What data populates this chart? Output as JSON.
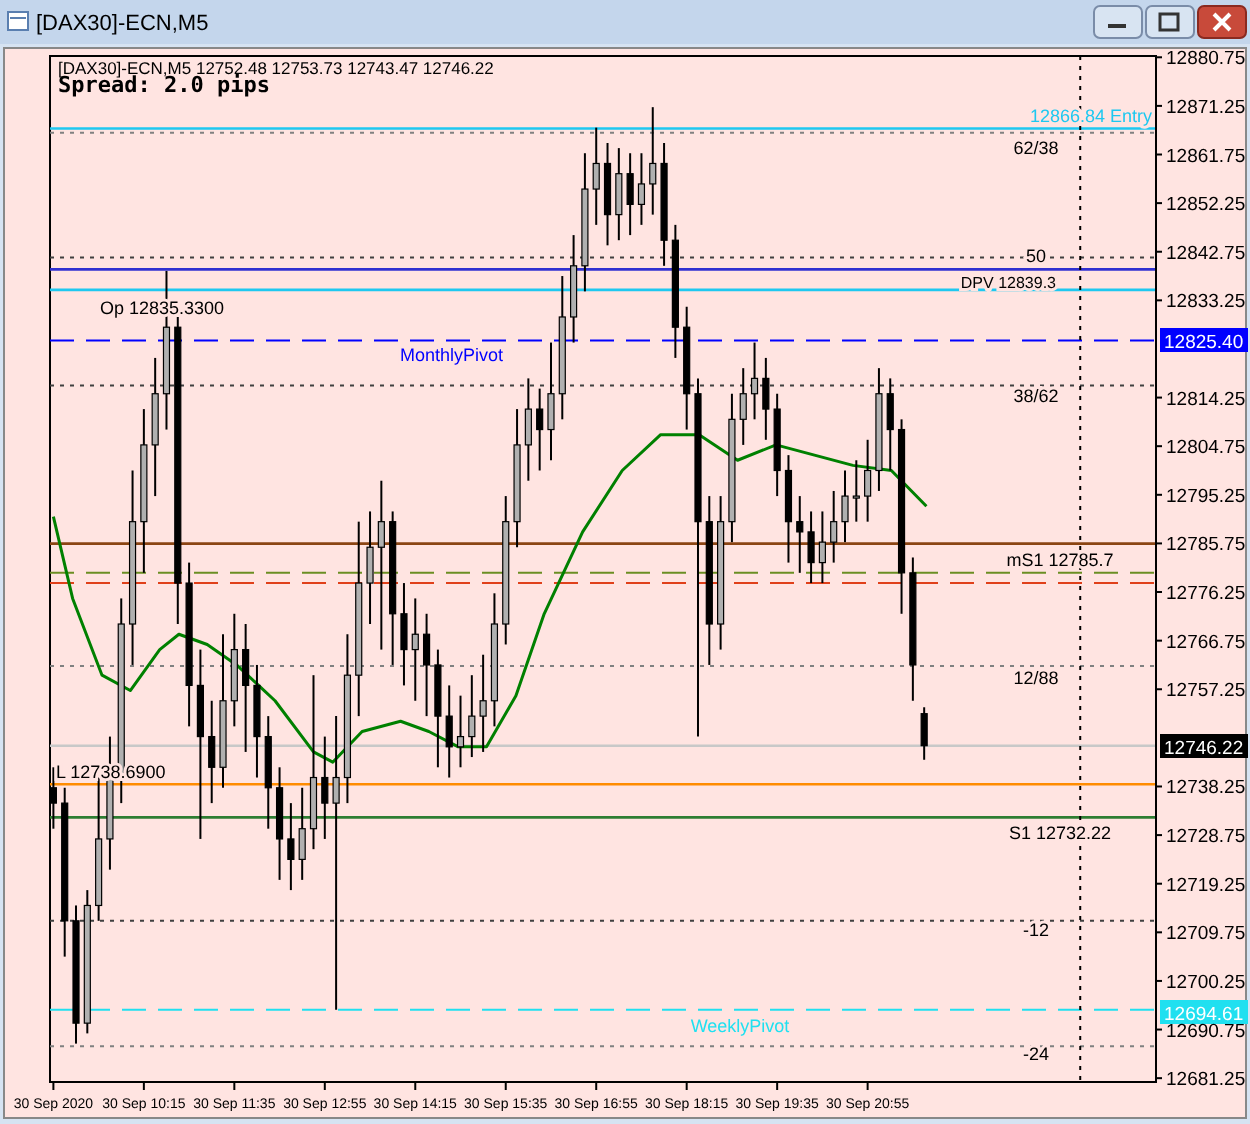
{
  "chart_data": {
    "type": "candlestick",
    "title": "[DAX30]-ECN,M5",
    "subtitle": "[DAX30]-ECN,M5 12752.48 12753.73 12743.47 12746.22",
    "annotations": [
      "Spread: 2.0 pips",
      "62/38",
      "50",
      "38/62",
      "12/88",
      "-12",
      "-24",
      "12825.40",
      "12746.22",
      "12694.61"
    ],
    "x": [
      "2020-09-30T08:55",
      "2020-09-30T09:05",
      "2020-09-30T09:15",
      "2020-09-30T09:25",
      "2020-09-30T09:35",
      "2020-09-30T09:45",
      "2020-09-30T09:55",
      "2020-09-30T10:05",
      "2020-09-30T10:15",
      "2020-09-30T10:25",
      "2020-09-30T10:35",
      "2020-09-30T10:45",
      "2020-09-30T10:55",
      "2020-09-30T11:05",
      "2020-09-30T11:15",
      "2020-09-30T11:25",
      "2020-09-30T11:35",
      "2020-09-30T11:45",
      "2020-09-30T11:55",
      "2020-09-30T12:05",
      "2020-09-30T12:15",
      "2020-09-30T12:25",
      "2020-09-30T12:35",
      "2020-09-30T12:45",
      "2020-09-30T12:55",
      "2020-09-30T13:05",
      "2020-09-30T13:15",
      "2020-09-30T13:25",
      "2020-09-30T13:35",
      "2020-09-30T13:45",
      "2020-09-30T13:55",
      "2020-09-30T14:05",
      "2020-09-30T14:15",
      "2020-09-30T14:25",
      "2020-09-30T14:35",
      "2020-09-30T14:45",
      "2020-09-30T14:55",
      "2020-09-30T15:05",
      "2020-09-30T15:15",
      "2020-09-30T15:25",
      "2020-09-30T15:35",
      "2020-09-30T15:45",
      "2020-09-30T15:55",
      "2020-09-30T16:05",
      "2020-09-30T16:15",
      "2020-09-30T16:25",
      "2020-09-30T16:35",
      "2020-09-30T16:45",
      "2020-09-30T16:55",
      "2020-09-30T17:05",
      "2020-09-30T17:15",
      "2020-09-30T17:25",
      "2020-09-30T17:35",
      "2020-09-30T17:45",
      "2020-09-30T17:55",
      "2020-09-30T18:05",
      "2020-09-30T18:15",
      "2020-09-30T18:25",
      "2020-09-30T18:35",
      "2020-09-30T18:45",
      "2020-09-30T18:55",
      "2020-09-30T19:05",
      "2020-09-30T19:15",
      "2020-09-30T19:25",
      "2020-09-30T19:35",
      "2020-09-30T19:45",
      "2020-09-30T19:55",
      "2020-09-30T20:05",
      "2020-09-30T20:15",
      "2020-09-30T20:25",
      "2020-09-30T20:35",
      "2020-09-30T20:45",
      "2020-09-30T20:55",
      "2020-09-30T21:05",
      "2020-09-30T21:15",
      "2020-09-30T21:25",
      "2020-09-30T21:35",
      "2020-09-30T21:45"
    ],
    "ohlc": [
      [
        12738,
        12742,
        12730,
        12735
      ],
      [
        12735,
        12738,
        12705,
        12712
      ],
      [
        12712,
        12715,
        12688,
        12692
      ],
      [
        12692,
        12718,
        12690,
        12715
      ],
      [
        12715,
        12740,
        12712,
        12728
      ],
      [
        12728,
        12748,
        12722,
        12740
      ],
      [
        12740,
        12775,
        12735,
        12770
      ],
      [
        12770,
        12800,
        12762,
        12790
      ],
      [
        12790,
        12812,
        12780,
        12805
      ],
      [
        12805,
        12822,
        12795,
        12815
      ],
      [
        12815,
        12839,
        12808,
        12828
      ],
      [
        12828,
        12830,
        12770,
        12778
      ],
      [
        12778,
        12782,
        12750,
        12758
      ],
      [
        12758,
        12765,
        12728,
        12748
      ],
      [
        12748,
        12755,
        12735,
        12742
      ],
      [
        12742,
        12768,
        12738,
        12755
      ],
      [
        12755,
        12772,
        12750,
        12765
      ],
      [
        12765,
        12770,
        12745,
        12758
      ],
      [
        12758,
        12762,
        12740,
        12748
      ],
      [
        12748,
        12752,
        12730,
        12738
      ],
      [
        12738,
        12742,
        12720,
        12728
      ],
      [
        12728,
        12735,
        12718,
        12724
      ],
      [
        12724,
        12738,
        12720,
        12730
      ],
      [
        12730,
        12760,
        12726,
        12740
      ],
      [
        12740,
        12748,
        12728,
        12735
      ],
      [
        12735,
        12752,
        12694.6,
        12740
      ],
      [
        12740,
        12768,
        12735,
        12760
      ],
      [
        12760,
        12790,
        12752,
        12778
      ],
      [
        12778,
        12792,
        12770,
        12785
      ],
      [
        12785,
        12798,
        12765,
        12790
      ],
      [
        12790,
        12792,
        12762,
        12772
      ],
      [
        12772,
        12778,
        12758,
        12765
      ],
      [
        12765,
        12775,
        12755,
        12768
      ],
      [
        12768,
        12772,
        12752,
        12762
      ],
      [
        12762,
        12765,
        12742,
        12752
      ],
      [
        12752,
        12758,
        12740,
        12746
      ],
      [
        12746,
        12756,
        12742,
        12748
      ],
      [
        12748,
        12760,
        12744,
        12752
      ],
      [
        12752,
        12764,
        12745,
        12755
      ],
      [
        12755,
        12776,
        12750,
        12770
      ],
      [
        12770,
        12795,
        12766,
        12790
      ],
      [
        12790,
        12812,
        12785,
        12805
      ],
      [
        12805,
        12818,
        12798,
        12812
      ],
      [
        12812,
        12816,
        12800,
        12808
      ],
      [
        12808,
        12825,
        12802,
        12815
      ],
      [
        12815,
        12838,
        12810,
        12830
      ],
      [
        12830,
        12846,
        12825,
        12840
      ],
      [
        12840,
        12862,
        12835,
        12855
      ],
      [
        12855,
        12867,
        12848,
        12860
      ],
      [
        12860,
        12864,
        12844,
        12850
      ],
      [
        12850,
        12863,
        12845,
        12858
      ],
      [
        12858,
        12862,
        12846,
        12852
      ],
      [
        12852,
        12862,
        12848,
        12856
      ],
      [
        12856,
        12871,
        12850,
        12860
      ],
      [
        12860,
        12864,
        12840,
        12845
      ],
      [
        12845,
        12848,
        12822,
        12828
      ],
      [
        12828,
        12832,
        12808,
        12815
      ],
      [
        12815,
        12818,
        12748,
        12790
      ],
      [
        12790,
        12795,
        12762,
        12770
      ],
      [
        12770,
        12795,
        12765,
        12790
      ],
      [
        12790,
        12815,
        12786,
        12810
      ],
      [
        12810,
        12820,
        12805,
        12815
      ],
      [
        12815,
        12825,
        12810,
        12818
      ],
      [
        12818,
        12822,
        12806,
        12812
      ],
      [
        12812,
        12815,
        12795,
        12800
      ],
      [
        12800,
        12803,
        12782,
        12790
      ],
      [
        12790,
        12795,
        12780,
        12788
      ],
      [
        12788,
        12792,
        12778,
        12782
      ],
      [
        12782,
        12792,
        12778,
        12786
      ],
      [
        12786,
        12796,
        12782,
        12790
      ],
      [
        12790,
        12800,
        12786,
        12795
      ],
      [
        12795,
        12802,
        12790,
        12795
      ],
      [
        12795,
        12806,
        12790,
        12800
      ],
      [
        12800,
        12820,
        12796,
        12815
      ],
      [
        12815,
        12818,
        12800,
        12808
      ],
      [
        12808,
        12810,
        12772,
        12780
      ],
      [
        12780,
        12783,
        12755,
        12762
      ],
      [
        12752.48,
        12753.73,
        12743.47,
        12746.22
      ]
    ],
    "series": [
      {
        "type": "line",
        "color": "#008000",
        "x": [
          "2020-09-30T08:55",
          "2020-09-30T09:12",
          "2020-09-30T09:38",
          "2020-09-30T10:03",
          "2020-09-30T10:29",
          "2020-09-30T10:46",
          "2020-09-30T11:11",
          "2020-09-30T11:37",
          "2020-09-30T12:11",
          "2020-09-30T12:45",
          "2020-09-30T13:02",
          "2020-09-30T13:28",
          "2020-09-30T14:02",
          "2020-09-30T14:27",
          "2020-09-30T14:53",
          "2020-09-30T15:18",
          "2020-09-30T15:44",
          "2020-09-30T16:09",
          "2020-09-30T16:43",
          "2020-09-30T17:18",
          "2020-09-30T17:52",
          "2020-09-30T18:26",
          "2020-09-30T19:00",
          "2020-09-30T19:34",
          "2020-09-30T20:08",
          "2020-09-30T20:42",
          "2020-09-30T21:16",
          "2020-09-30T21:47"
        ],
        "values": [
          12791,
          12775,
          12760,
          12757,
          12765,
          12768,
          12766,
          12762,
          12755,
          12745,
          12743,
          12749,
          12751,
          12749,
          12746,
          12746,
          12756,
          12772,
          12788,
          12800,
          12807,
          12807,
          12802,
          12805,
          12803,
          12801,
          12800,
          12793
        ]
      }
    ],
    "xlim": [
      "2020-09-30T08:52",
      "2020-10-01T01:10"
    ],
    "xticks": [
      {
        "value": "2020-09-30T08:55",
        "label": "30 Sep 2020"
      },
      {
        "value": "2020-09-30T10:15",
        "label": "30 Sep 10:15"
      },
      {
        "value": "2020-09-30T11:35",
        "label": "30 Sep 11:35"
      },
      {
        "value": "2020-09-30T12:55",
        "label": "30 Sep 12:55"
      },
      {
        "value": "2020-09-30T14:15",
        "label": "30 Sep 14:15"
      },
      {
        "value": "2020-09-30T15:35",
        "label": "30 Sep 15:35"
      },
      {
        "value": "2020-09-30T16:55",
        "label": "30 Sep 16:55"
      },
      {
        "value": "2020-09-30T18:15",
        "label": "30 Sep 18:15"
      },
      {
        "value": "2020-09-30T19:35",
        "label": "30 Sep 19:35"
      },
      {
        "value": "2020-09-30T20:55",
        "label": "30 Sep 20:55"
      }
    ],
    "ylim": [
      12680.5,
      12881
    ],
    "yticks": [
      12880.75,
      12871.25,
      12861.75,
      12852.25,
      12842.75,
      12833.25,
      12814.25,
      12804.75,
      12795.25,
      12785.75,
      12776.25,
      12766.75,
      12757.25,
      12738.25,
      12728.75,
      12719.25,
      12709.75,
      12700.25,
      12690.75,
      12681.25
    ],
    "ref_lines": [
      {
        "axis": "y",
        "value": 12866.84,
        "label": "12866.84 Entry",
        "color": "#1ec8f0",
        "line_style": "solid"
      },
      {
        "axis": "y",
        "value": 12866,
        "color": "#808080",
        "line_style": "dotted"
      },
      {
        "axis": "y",
        "value": 12841.6,
        "color": "#404040",
        "line_style": "dotted"
      },
      {
        "axis": "y",
        "value": 12839.3,
        "label": "DPV 12839.3",
        "color": "#3030d0",
        "line_style": "solid"
      },
      {
        "axis": "y",
        "value": 12835.3,
        "label": "Op 12835.3300",
        "color": "#1ec8f0",
        "line_style": "solid"
      },
      {
        "axis": "y",
        "value": 12825.4,
        "label": "MonthlyPivot",
        "color": "#0000ff",
        "line_style": "dashed"
      },
      {
        "axis": "y",
        "value": 12816.6,
        "color": "#404040",
        "line_style": "dotted"
      },
      {
        "axis": "y",
        "value": 12785.7,
        "label": "mS1 12785.7",
        "color": "#8b4513",
        "line_style": "solid"
      },
      {
        "axis": "y",
        "value": 12780,
        "color": "#6b8e23",
        "line_style": "dashed"
      },
      {
        "axis": "y",
        "value": 12778,
        "color": "#e0401a",
        "line_style": "dashed"
      },
      {
        "axis": "y",
        "value": 12761.8,
        "color": "#808080",
        "line_style": "dotted"
      },
      {
        "axis": "y",
        "value": 12746.22,
        "color": "#c8c8c8",
        "line_style": "solid"
      },
      {
        "axis": "y",
        "value": 12738.69,
        "label": "L 12738.6900",
        "color": "#ff8c00",
        "line_style": "solid"
      },
      {
        "axis": "y",
        "value": 12732.22,
        "label": "S1 12732.22",
        "color": "#2e7d32",
        "line_style": "solid"
      },
      {
        "axis": "y",
        "value": 12712,
        "color": "#404040",
        "line_style": "dotted"
      },
      {
        "axis": "y",
        "value": 12694.61,
        "label": "WeeklyPivot",
        "color": "#20e0f0",
        "line_style": "dashed"
      },
      {
        "axis": "y",
        "value": 12687.5,
        "color": "#808080",
        "line_style": "dotted"
      },
      {
        "axis": "x",
        "value": "2020-10-01T00:03",
        "color": "#000000",
        "line_style": "dotted"
      }
    ],
    "grid": false
  }
}
